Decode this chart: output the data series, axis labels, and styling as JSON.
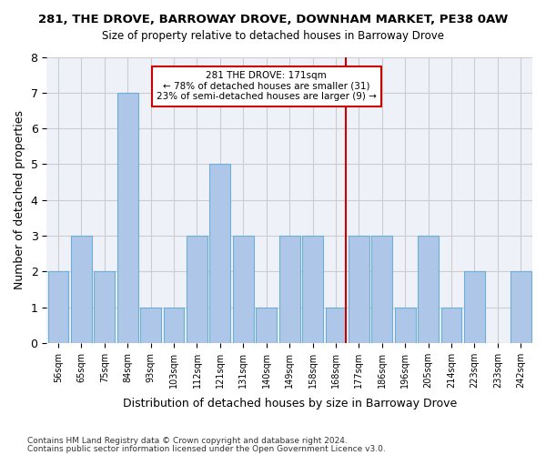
{
  "title1": "281, THE DROVE, BARROWAY DROVE, DOWNHAM MARKET, PE38 0AW",
  "title2": "Size of property relative to detached houses in Barroway Drove",
  "xlabel": "Distribution of detached houses by size in Barroway Drove",
  "ylabel": "Number of detached properties",
  "footer1": "Contains HM Land Registry data © Crown copyright and database right 2024.",
  "footer2": "Contains public sector information licensed under the Open Government Licence v3.0.",
  "categories": [
    "56sqm",
    "65sqm",
    "75sqm",
    "84sqm",
    "93sqm",
    "103sqm",
    "112sqm",
    "121sqm",
    "131sqm",
    "140sqm",
    "149sqm",
    "158sqm",
    "168sqm",
    "177sqm",
    "186sqm",
    "196sqm",
    "205sqm",
    "214sqm",
    "223sqm",
    "233sqm",
    "242sqm"
  ],
  "values": [
    2,
    3,
    2,
    7,
    1,
    1,
    3,
    5,
    3,
    1,
    3,
    3,
    1,
    3,
    3,
    1,
    3,
    1,
    2,
    0,
    2
  ],
  "bar_color": "#aec6e8",
  "bar_edgecolor": "#6baed6",
  "grid_color": "#cccccc",
  "background_color": "#eef2f8",
  "annotation_text": "281 THE DROVE: 171sqm\n← 78% of detached houses are smaller (31)\n23% of semi-detached houses are larger (9) →",
  "annotation_box_edgecolor": "#cc0000",
  "vline_x": 12.45,
  "vline_color": "#cc0000",
  "ylim": [
    0,
    8
  ],
  "yticks": [
    0,
    1,
    2,
    3,
    4,
    5,
    6,
    7,
    8
  ]
}
